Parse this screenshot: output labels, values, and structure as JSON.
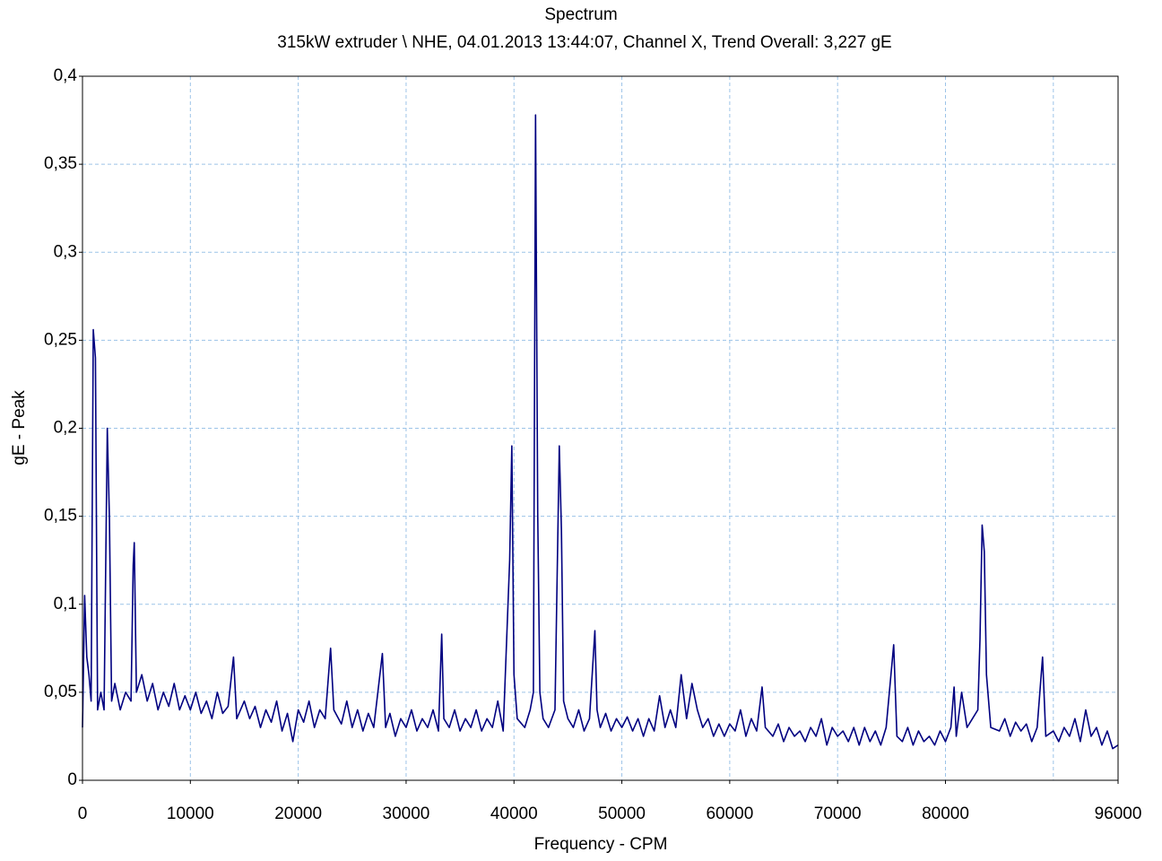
{
  "chart_data": {
    "type": "line",
    "title": "Spectrum",
    "subtitle": "315kW extruder \\ NHE, 04.01.2013 13:44:07, Channel X, Trend Overall: 3,227 gE",
    "x_label": "Frequency - CPM",
    "y_label": "gE - Peak",
    "xlim": [
      0,
      96000
    ],
    "ylim": [
      0,
      0.4
    ],
    "xticks": [
      0,
      10000,
      20000,
      30000,
      40000,
      50000,
      60000,
      70000,
      80000,
      96000
    ],
    "xgrid": [
      10000,
      20000,
      30000,
      40000,
      50000,
      60000,
      70000,
      80000,
      90000
    ],
    "yticks": [
      0,
      {
        "value": 0.05,
        "label": "0,05"
      },
      {
        "value": 0.1,
        "label": "0,1"
      },
      {
        "value": 0.15,
        "label": "0,15"
      },
      {
        "value": 0.2,
        "label": "0,2"
      },
      {
        "value": 0.25,
        "label": "0,25"
      },
      {
        "value": 0.3,
        "label": "0,3"
      },
      {
        "value": 0.35,
        "label": "0,35"
      },
      {
        "value": 0.4,
        "label": "0,4"
      }
    ],
    "grid": true,
    "x": [
      0,
      200,
      400,
      600,
      800,
      1000,
      1200,
      1400,
      1700,
      2000,
      2300,
      2500,
      2700,
      3000,
      3500,
      4000,
      4500,
      4700,
      4800,
      5000,
      5500,
      6000,
      6500,
      7000,
      7500,
      8000,
      8500,
      9000,
      9500,
      10000,
      10500,
      11000,
      11500,
      12000,
      12500,
      13000,
      13500,
      14000,
      14300,
      15000,
      15500,
      16000,
      16500,
      17000,
      17500,
      18000,
      18500,
      19000,
      19500,
      20000,
      20500,
      21000,
      21500,
      22000,
      22500,
      23000,
      23300,
      24000,
      24500,
      25000,
      25500,
      26000,
      26500,
      27000,
      27800,
      28100,
      28500,
      29000,
      29500,
      30000,
      30500,
      31000,
      31500,
      32000,
      32500,
      33000,
      33300,
      33500,
      34000,
      34500,
      35000,
      35500,
      36000,
      36500,
      37000,
      37500,
      38000,
      38500,
      39000,
      39600,
      39800,
      40000,
      40300,
      41000,
      41500,
      41800,
      42000,
      42200,
      42400,
      42700,
      43200,
      43800,
      44200,
      44400,
      44600,
      45000,
      45500,
      46000,
      46500,
      47000,
      47500,
      47700,
      48000,
      48500,
      49000,
      49500,
      50000,
      50500,
      51000,
      51500,
      52000,
      52500,
      53000,
      53500,
      54000,
      54500,
      55000,
      55500,
      56000,
      56500,
      57000,
      57500,
      58000,
      58500,
      59000,
      59500,
      60000,
      60500,
      61000,
      61500,
      62000,
      62500,
      63000,
      63300,
      64000,
      64500,
      65000,
      65500,
      66000,
      66500,
      67000,
      67500,
      68000,
      68500,
      69000,
      69500,
      70000,
      70500,
      71000,
      71500,
      72000,
      72500,
      73000,
      73500,
      74000,
      74500,
      75200,
      75500,
      76000,
      76500,
      77000,
      77500,
      78000,
      78500,
      79000,
      79500,
      80000,
      80500,
      80800,
      81000,
      81500,
      82000,
      82500,
      83000,
      83200,
      83400,
      83600,
      83800,
      84200,
      85000,
      85500,
      86000,
      86500,
      87000,
      87500,
      88000,
      88500,
      89000,
      89300,
      90000,
      90500,
      91000,
      91500,
      92000,
      92500,
      93000,
      93500,
      94000,
      94500,
      95000,
      95500,
      96000
    ],
    "series": [
      {
        "name": "Spectrum",
        "color": "#000080",
        "values": [
          0.03,
          0.105,
          0.07,
          0.06,
          0.045,
          0.256,
          0.24,
          0.04,
          0.05,
          0.04,
          0.2,
          0.148,
          0.045,
          0.055,
          0.04,
          0.05,
          0.045,
          0.122,
          0.135,
          0.05,
          0.06,
          0.045,
          0.055,
          0.04,
          0.05,
          0.042,
          0.055,
          0.04,
          0.048,
          0.04,
          0.05,
          0.038,
          0.045,
          0.035,
          0.05,
          0.038,
          0.042,
          0.07,
          0.035,
          0.045,
          0.035,
          0.042,
          0.03,
          0.04,
          0.033,
          0.045,
          0.028,
          0.038,
          0.022,
          0.04,
          0.033,
          0.045,
          0.03,
          0.04,
          0.035,
          0.075,
          0.04,
          0.032,
          0.045,
          0.03,
          0.04,
          0.028,
          0.038,
          0.03,
          0.072,
          0.03,
          0.038,
          0.025,
          0.035,
          0.03,
          0.04,
          0.028,
          0.035,
          0.03,
          0.04,
          0.028,
          0.083,
          0.035,
          0.03,
          0.04,
          0.028,
          0.035,
          0.03,
          0.04,
          0.028,
          0.035,
          0.03,
          0.045,
          0.028,
          0.125,
          0.19,
          0.06,
          0.035,
          0.03,
          0.04,
          0.05,
          0.378,
          0.152,
          0.05,
          0.035,
          0.03,
          0.04,
          0.19,
          0.142,
          0.045,
          0.035,
          0.03,
          0.04,
          0.028,
          0.035,
          0.085,
          0.04,
          0.03,
          0.038,
          0.028,
          0.035,
          0.03,
          0.036,
          0.028,
          0.035,
          0.025,
          0.035,
          0.028,
          0.048,
          0.03,
          0.04,
          0.03,
          0.06,
          0.035,
          0.055,
          0.04,
          0.03,
          0.035,
          0.025,
          0.032,
          0.025,
          0.032,
          0.028,
          0.04,
          0.025,
          0.035,
          0.028,
          0.053,
          0.03,
          0.025,
          0.032,
          0.022,
          0.03,
          0.025,
          0.028,
          0.022,
          0.03,
          0.025,
          0.035,
          0.02,
          0.03,
          0.025,
          0.028,
          0.022,
          0.03,
          0.02,
          0.03,
          0.022,
          0.028,
          0.02,
          0.03,
          0.077,
          0.025,
          0.022,
          0.03,
          0.02,
          0.028,
          0.022,
          0.025,
          0.02,
          0.028,
          0.022,
          0.03,
          0.053,
          0.025,
          0.05,
          0.03,
          0.035,
          0.04,
          0.08,
          0.145,
          0.13,
          0.06,
          0.03,
          0.028,
          0.035,
          0.025,
          0.033,
          0.028,
          0.032,
          0.022,
          0.03,
          0.07,
          0.025,
          0.028,
          0.022,
          0.03,
          0.025,
          0.035,
          0.022,
          0.04,
          0.025,
          0.03,
          0.02,
          0.028,
          0.018,
          0.02
        ]
      }
    ]
  }
}
